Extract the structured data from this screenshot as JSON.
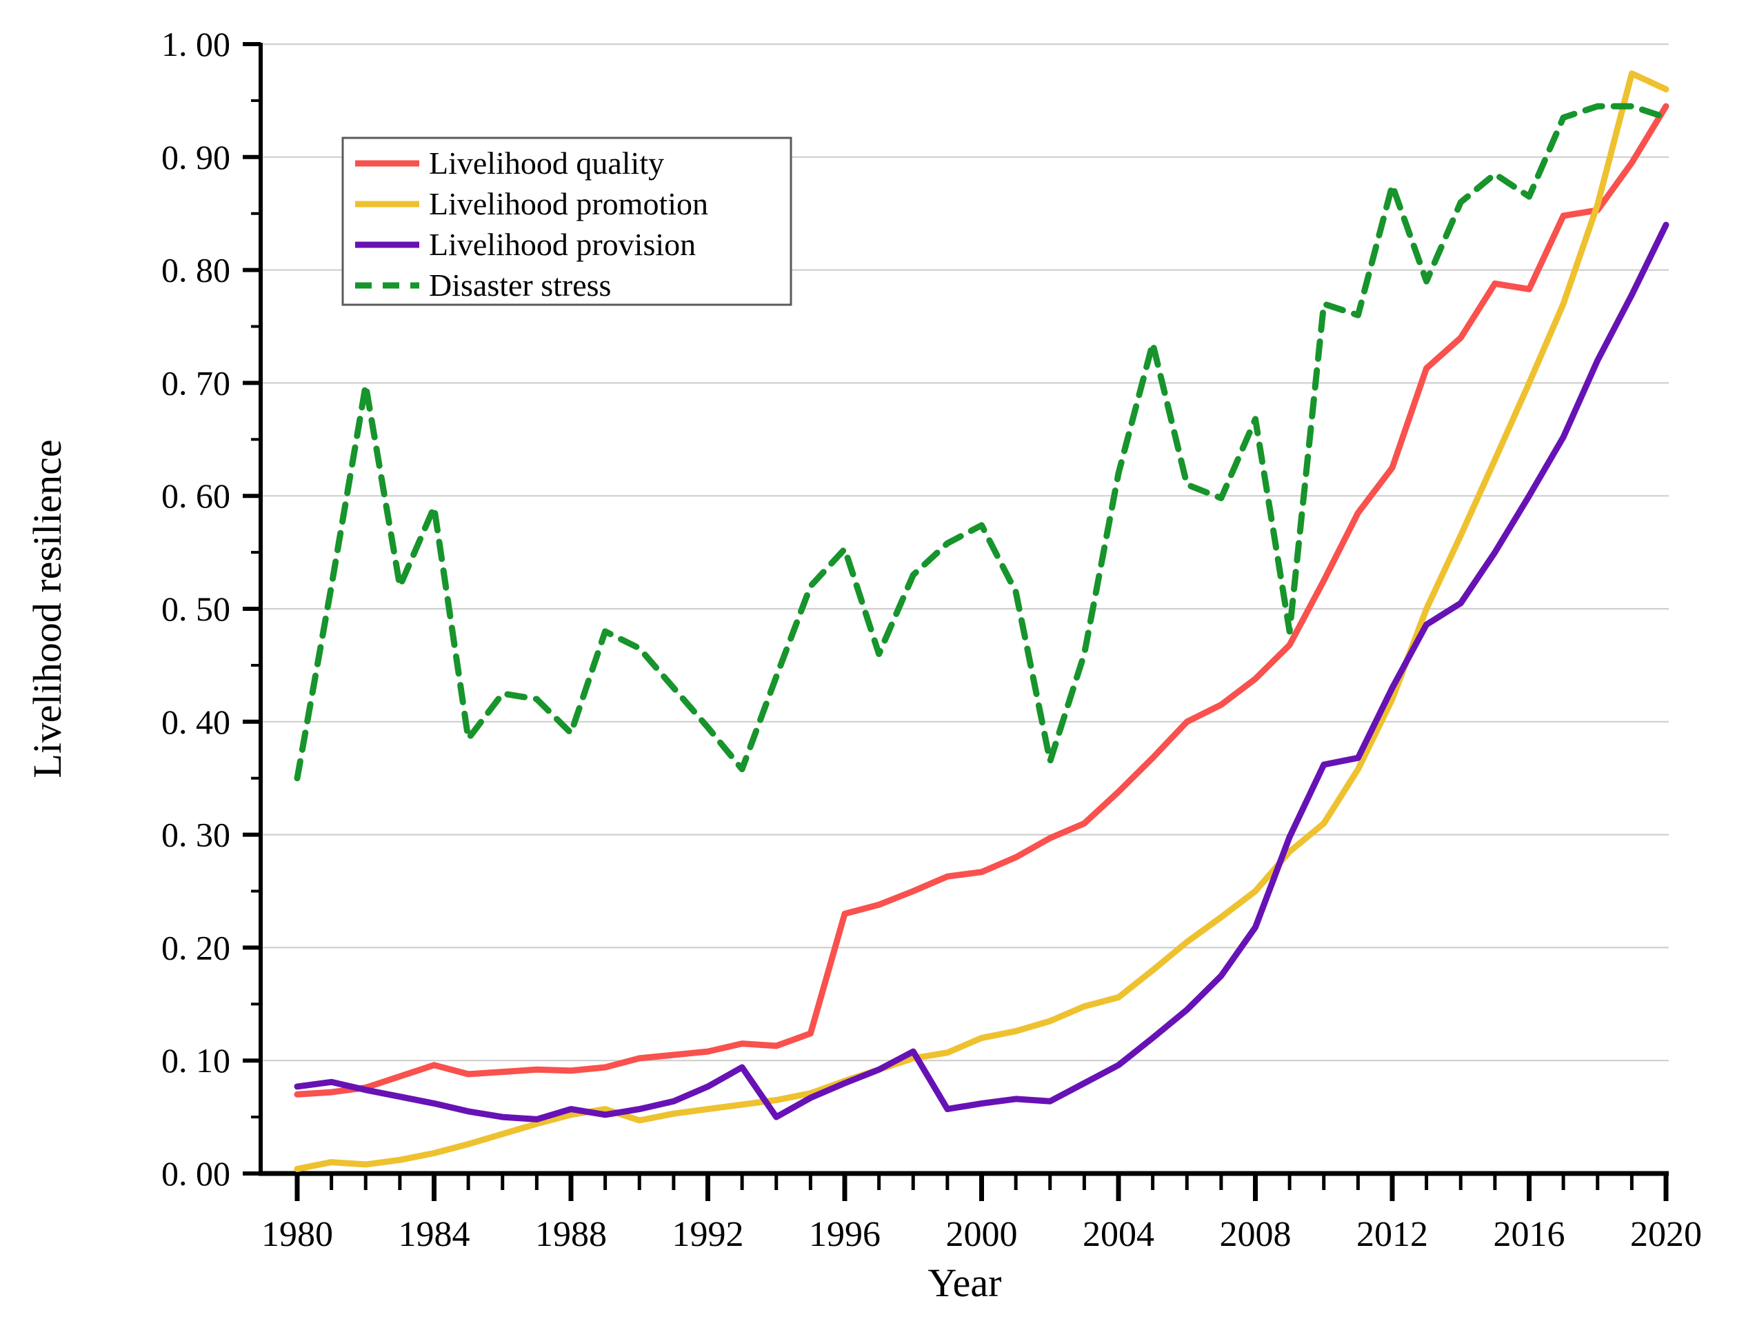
{
  "chart_data": {
    "type": "line",
    "title": "",
    "xlabel": "Year",
    "ylabel": "Livelihood resilience",
    "x_start": 1980,
    "x_end": 2020,
    "x_step": 1,
    "xlim": [
      1980,
      2020
    ],
    "ylim": [
      0.0,
      1.0
    ],
    "grid": "horizontal-light",
    "legend_position": "upper-left",
    "x_major_ticks": [
      1980,
      1984,
      1988,
      1992,
      1996,
      2000,
      2004,
      2008,
      2012,
      2016,
      2020
    ],
    "x_tick_labels": [
      "1980",
      "1984",
      "1988",
      "1992",
      "1996",
      "2000",
      "2004",
      "2008",
      "2012",
      "2016",
      "2020"
    ],
    "y_major_ticks": [
      0.0,
      0.1,
      0.2,
      0.3,
      0.4,
      0.5,
      0.6,
      0.7,
      0.8,
      0.9,
      1.0
    ],
    "y_tick_labels": [
      "0. 00",
      "0. 10",
      "0. 20",
      "0. 30",
      "0. 40",
      "0. 50",
      "0. 60",
      "0. 70",
      "0. 80",
      "0. 90",
      "1. 00"
    ],
    "series": [
      {
        "name": "Livelihood quality",
        "color": "#f9514d",
        "style": "solid",
        "values": [
          0.07,
          0.072,
          0.076,
          0.086,
          0.096,
          0.088,
          0.09,
          0.092,
          0.091,
          0.094,
          0.102,
          0.105,
          0.108,
          0.115,
          0.113,
          0.124,
          0.23,
          0.238,
          0.25,
          0.263,
          0.267,
          0.28,
          0.297,
          0.31,
          0.338,
          0.368,
          0.4,
          0.415,
          0.438,
          0.468,
          0.525,
          0.585,
          0.625,
          0.713,
          0.74,
          0.788,
          0.783,
          0.848,
          0.853,
          0.895,
          0.945
        ]
      },
      {
        "name": "Livelihood promotion",
        "color": "#eec12f",
        "style": "solid",
        "values": [
          0.004,
          0.01,
          0.008,
          0.012,
          0.018,
          0.026,
          0.035,
          0.044,
          0.052,
          0.057,
          0.047,
          0.053,
          0.057,
          0.061,
          0.065,
          0.071,
          0.082,
          0.092,
          0.102,
          0.107,
          0.12,
          0.126,
          0.135,
          0.148,
          0.156,
          0.18,
          0.205,
          0.227,
          0.25,
          0.285,
          0.31,
          0.358,
          0.42,
          0.5,
          0.565,
          0.632,
          0.7,
          0.77,
          0.858,
          0.974,
          0.96
        ]
      },
      {
        "name": "Livelihood provision",
        "color": "#6712b5",
        "style": "solid",
        "values": [
          0.077,
          0.081,
          0.074,
          0.068,
          0.062,
          0.055,
          0.05,
          0.048,
          0.057,
          0.052,
          0.057,
          0.064,
          0.077,
          0.094,
          0.05,
          0.067,
          0.08,
          0.092,
          0.108,
          0.057,
          0.062,
          0.066,
          0.064,
          0.08,
          0.096,
          0.12,
          0.145,
          0.175,
          0.218,
          0.298,
          0.362,
          0.368,
          0.43,
          0.486,
          0.505,
          0.55,
          0.6,
          0.652,
          0.72,
          0.778,
          0.84
        ]
      },
      {
        "name": "Disaster stress",
        "color": "#17942b",
        "style": "dashed",
        "values": [
          0.35,
          0.52,
          0.698,
          0.52,
          0.59,
          0.385,
          0.425,
          0.42,
          0.39,
          0.48,
          0.465,
          0.43,
          0.395,
          0.358,
          0.44,
          0.52,
          0.553,
          0.46,
          0.53,
          0.558,
          0.574,
          0.515,
          0.365,
          0.46,
          0.62,
          0.735,
          0.61,
          0.598,
          0.668,
          0.48,
          0.77,
          0.76,
          0.875,
          0.79,
          0.86,
          0.885,
          0.865,
          0.935,
          0.945,
          0.945,
          0.935
        ]
      }
    ]
  },
  "legend": {
    "items": [
      {
        "label": "Livelihood quality"
      },
      {
        "label": "Livelihood promotion"
      },
      {
        "label": "Livelihood provision"
      },
      {
        "label": "Disaster stress"
      }
    ]
  },
  "axes": {
    "y_title": "Livelihood resilience",
    "x_title": "Year"
  },
  "colors": {
    "grid": "#cfcfcf",
    "axis": "#000000",
    "background": "#ffffff",
    "legend_border": "#5a5a5a"
  }
}
